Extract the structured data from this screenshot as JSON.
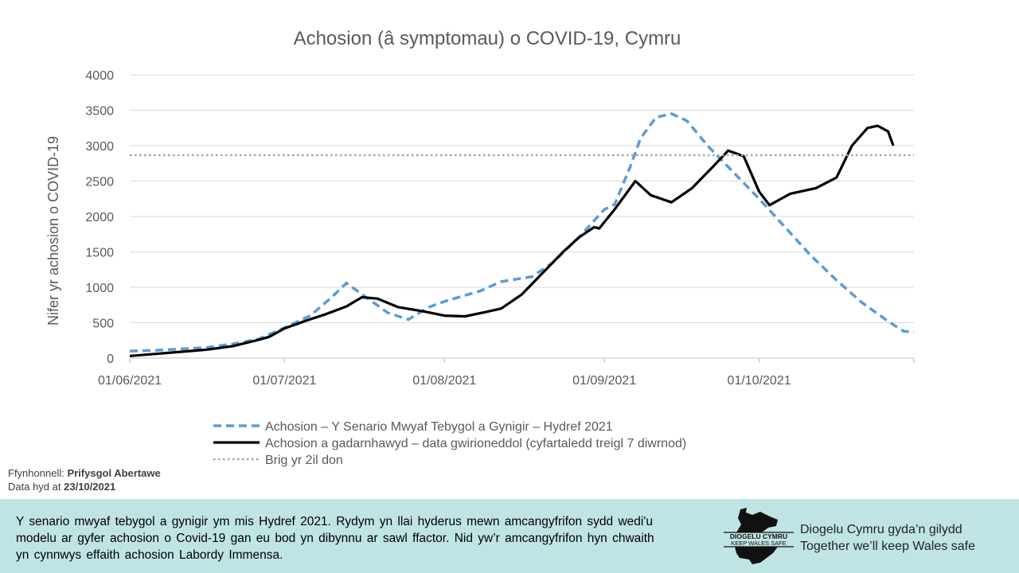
{
  "chart_data": {
    "type": "line",
    "title": "Achosion (â symptomau) o COVID-19, Cymru",
    "ylabel": "Nifer yr achosion o COVID-19",
    "xlabel": "",
    "ylim": [
      0,
      4000
    ],
    "yticks": [
      0,
      500,
      1000,
      1500,
      2000,
      2500,
      3000,
      3500,
      4000
    ],
    "xlim": [
      "01/06/2021",
      "31/10/2021"
    ],
    "xticks": [
      "01/06/2021",
      "01/07/2021",
      "01/08/2021",
      "01/09/2021",
      "01/10/2021"
    ],
    "grid": "horizontal",
    "legend": "bottom",
    "series": [
      {
        "name": "Achosion – Y Senario Mwyaf Tebygol a Gynigir – Hydref 2021",
        "color": "#5b9bd5",
        "style": "dashed",
        "points": [
          [
            "01/06/2021",
            100
          ],
          [
            "06/06/2021",
            110
          ],
          [
            "11/06/2021",
            130
          ],
          [
            "16/06/2021",
            150
          ],
          [
            "21/06/2021",
            200
          ],
          [
            "26/06/2021",
            270
          ],
          [
            "01/07/2021",
            430
          ],
          [
            "06/07/2021",
            600
          ],
          [
            "10/07/2021",
            850
          ],
          [
            "13/07/2021",
            1060
          ],
          [
            "17/07/2021",
            850
          ],
          [
            "21/07/2021",
            640
          ],
          [
            "25/07/2021",
            545
          ],
          [
            "29/07/2021",
            720
          ],
          [
            "01/08/2021",
            800
          ],
          [
            "08/08/2021",
            950
          ],
          [
            "12/08/2021",
            1080
          ],
          [
            "18/08/2021",
            1150
          ],
          [
            "22/08/2021",
            1350
          ],
          [
            "27/08/2021",
            1700
          ],
          [
            "01/09/2021",
            2100
          ],
          [
            "03/09/2021",
            2170
          ],
          [
            "06/09/2021",
            2700
          ],
          [
            "08/09/2021",
            3100
          ],
          [
            "11/09/2021",
            3400
          ],
          [
            "14/09/2021",
            3450
          ],
          [
            "17/09/2021",
            3350
          ],
          [
            "21/09/2021",
            3000
          ],
          [
            "25/09/2021",
            2700
          ],
          [
            "01/10/2021",
            2250
          ],
          [
            "06/10/2021",
            1850
          ],
          [
            "11/10/2021",
            1450
          ],
          [
            "16/10/2021",
            1100
          ],
          [
            "21/10/2021",
            780
          ],
          [
            "26/10/2021",
            520
          ],
          [
            "29/10/2021",
            380
          ],
          [
            "31/10/2021",
            370
          ]
        ]
      },
      {
        "name": "Achosion a gadarnhawyd – data gwirioneddol (cyfartaledd treigl 7 diwrnod)",
        "color": "#000000",
        "style": "solid",
        "points": [
          [
            "01/06/2021",
            30
          ],
          [
            "06/06/2021",
            60
          ],
          [
            "11/06/2021",
            90
          ],
          [
            "16/06/2021",
            120
          ],
          [
            "21/06/2021",
            170
          ],
          [
            "26/06/2021",
            260
          ],
          [
            "28/06/2021",
            300
          ],
          [
            "01/07/2021",
            420
          ],
          [
            "06/07/2021",
            550
          ],
          [
            "09/07/2021",
            620
          ],
          [
            "13/07/2021",
            730
          ],
          [
            "16/07/2021",
            860
          ],
          [
            "19/07/2021",
            840
          ],
          [
            "23/07/2021",
            720
          ],
          [
            "28/07/2021",
            660
          ],
          [
            "01/08/2021",
            600
          ],
          [
            "05/08/2021",
            590
          ],
          [
            "09/08/2021",
            650
          ],
          [
            "12/08/2021",
            700
          ],
          [
            "16/08/2021",
            900
          ],
          [
            "20/08/2021",
            1200
          ],
          [
            "24/08/2021",
            1500
          ],
          [
            "27/08/2021",
            1700
          ],
          [
            "30/08/2021",
            1850
          ],
          [
            "31/08/2021",
            1830
          ],
          [
            "03/09/2021",
            2100
          ],
          [
            "07/09/2021",
            2500
          ],
          [
            "10/09/2021",
            2300
          ],
          [
            "14/09/2021",
            2200
          ],
          [
            "18/09/2021",
            2400
          ],
          [
            "22/09/2021",
            2700
          ],
          [
            "25/09/2021",
            2930
          ],
          [
            "28/09/2021",
            2850
          ],
          [
            "01/10/2021",
            2350
          ],
          [
            "03/10/2021",
            2160
          ],
          [
            "07/10/2021",
            2320
          ],
          [
            "12/10/2021",
            2400
          ],
          [
            "16/10/2021",
            2550
          ],
          [
            "19/10/2021",
            3000
          ],
          [
            "22/10/2021",
            3250
          ],
          [
            "24/10/2021",
            3280
          ],
          [
            "26/10/2021",
            3200
          ],
          [
            "27/10/2021",
            3000
          ]
        ]
      },
      {
        "name": "Brig yr 2il don",
        "color": "#a6a6a6",
        "style": "dotted",
        "value": 2865
      }
    ]
  },
  "source": {
    "label": "Ffynhonnell:",
    "value": "Prifysgol Abertawe",
    "date_label": "Data hyd at",
    "date": "23/10/2021"
  },
  "footer": {
    "text": "Y senario mwyaf tebygol a gynigir ym mis Hydref 2021. Rydym yn llai hyderus mewn amcangyfrifon sydd wedi'u modelu ar gyfer achosion o Covid-19 gan eu bod yn dibynnu ar sawl ffactor. Nid yw’r amcangyfrifon hyn chwaith yn cynnwys effaith achosion Labordy Immensa.",
    "logo_line1": "DIOGELU CYMRU",
    "logo_line2": "KEEP WALES SAFE",
    "tagline1": "Diogelu Cymru gyda’n gilydd",
    "tagline2": "Together we’ll keep Wales safe"
  }
}
